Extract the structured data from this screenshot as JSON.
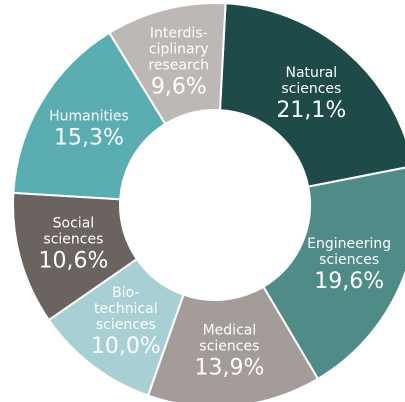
{
  "chart_data": {
    "type": "donut",
    "categories": [
      [
        "Natural",
        "sciences"
      ],
      [
        "Engineering",
        "sciences"
      ],
      [
        "Medical",
        "sciences"
      ],
      [
        "Bio-",
        "technical",
        "sciences"
      ],
      [
        "Social",
        "sciences"
      ],
      [
        "Humanities"
      ],
      [
        "Interdis-",
        "ciplinary",
        "research"
      ]
    ],
    "values": [
      21.1,
      19.6,
      13.9,
      10.0,
      10.6,
      15.3,
      9.6
    ],
    "value_labels": [
      "21,1%",
      "19,6%",
      "13,9%",
      "10,0%",
      "10,6%",
      "15,3%",
      "9,6%"
    ],
    "colors": [
      "#1e4a47",
      "#4f8c87",
      "#a39c98",
      "#a8cfd3",
      "#6b6360",
      "#5aaeb1",
      "#bdb8b5"
    ]
  }
}
